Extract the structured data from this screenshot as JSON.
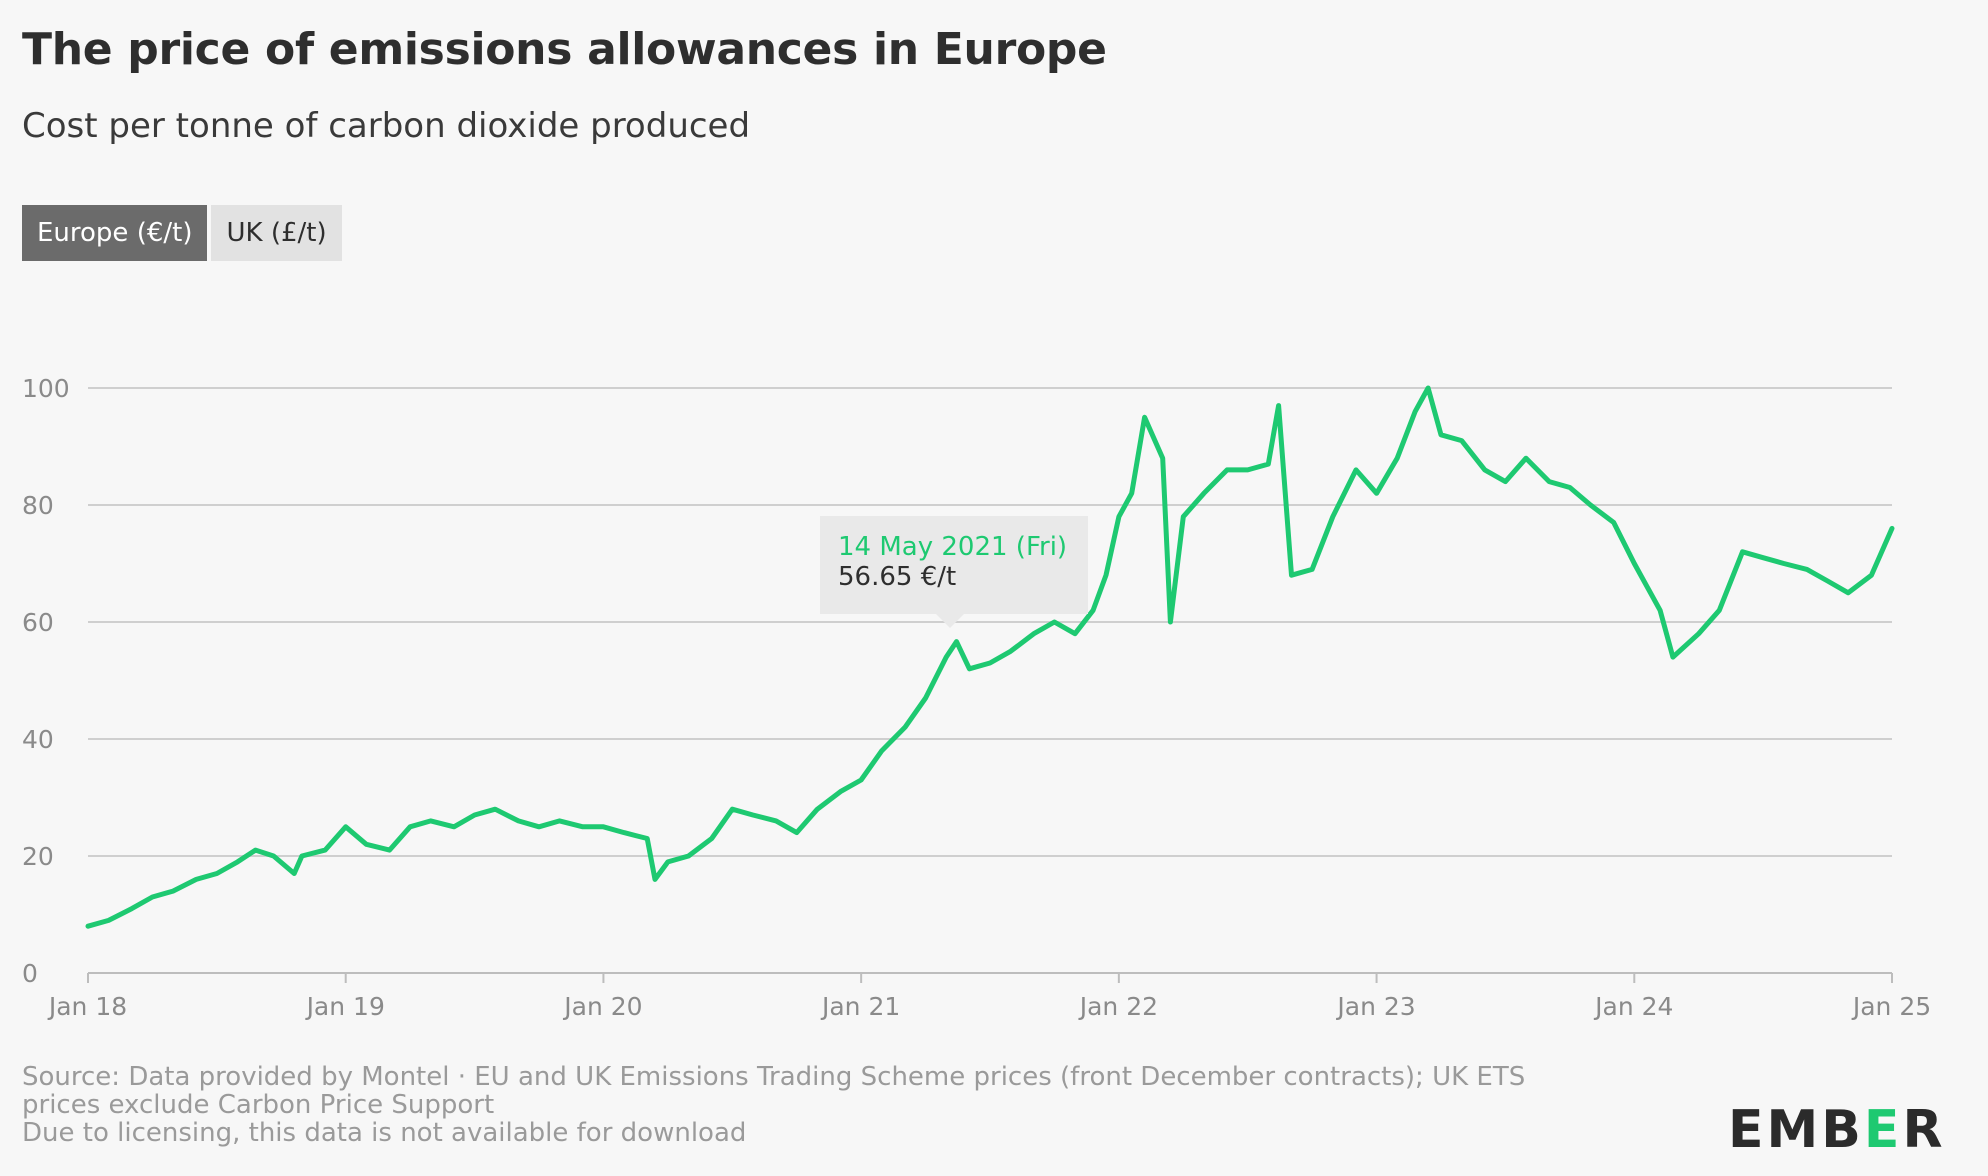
{
  "header": {
    "title": "The price of emissions allowances in Europe",
    "subtitle": "Cost per tonne of carbon dioxide produced"
  },
  "toggles": [
    {
      "label": "Europe (€/t)",
      "active": true
    },
    {
      "label": "UK (£/t)",
      "active": false
    }
  ],
  "tooltip": {
    "date": "14 May 2021 (Fri)",
    "value": "56.65 €/t",
    "x": 2021.37,
    "y": 56.65
  },
  "colors": {
    "line": "#1ec971",
    "grid": "#cfcfcf",
    "axis": "#bdbdbd"
  },
  "footer": {
    "source_line1": "Source: Data provided by Montel · EU and UK Emissions Trading Scheme prices (front December contracts); UK ETS",
    "source_line2": "prices exclude Carbon Price Support",
    "source_line3": "Due to licensing, this data is not available for download",
    "logo_prefix": "EMB",
    "logo_accent": "E",
    "logo_suffix": "R"
  },
  "chart_data": {
    "type": "line",
    "xlim": [
      2018.0,
      2025.0
    ],
    "ylim": [
      0,
      100
    ],
    "x_ticks": [
      {
        "value": 2018,
        "label": "Jan 18"
      },
      {
        "value": 2019,
        "label": "Jan 19"
      },
      {
        "value": 2020,
        "label": "Jan 20"
      },
      {
        "value": 2021,
        "label": "Jan 21"
      },
      {
        "value": 2022,
        "label": "Jan 22"
      },
      {
        "value": 2023,
        "label": "Jan 23"
      },
      {
        "value": 2024,
        "label": "Jan 24"
      },
      {
        "value": 2025,
        "label": "Jan 25"
      }
    ],
    "y_ticks": [
      0,
      20,
      40,
      60,
      80,
      100
    ],
    "grid": true,
    "series": [
      {
        "x": [
          2018.0,
          2018.08,
          2018.17,
          2018.25,
          2018.33,
          2018.42,
          2018.5,
          2018.58,
          2018.65,
          2018.72,
          2018.8,
          2018.83,
          2018.92,
          2019.0,
          2019.08,
          2019.17,
          2019.25,
          2019.33,
          2019.42,
          2019.5,
          2019.58,
          2019.67,
          2019.75,
          2019.83,
          2019.92,
          2020.0,
          2020.08,
          2020.17,
          2020.2,
          2020.25,
          2020.33,
          2020.42,
          2020.5,
          2020.58,
          2020.67,
          2020.75,
          2020.83,
          2020.92,
          2021.0,
          2021.08,
          2021.17,
          2021.25,
          2021.33,
          2021.37,
          2021.42,
          2021.5,
          2021.58,
          2021.67,
          2021.75,
          2021.83,
          2021.9,
          2021.95,
          2022.0,
          2022.05,
          2022.1,
          2022.17,
          2022.2,
          2022.25,
          2022.33,
          2022.42,
          2022.5,
          2022.58,
          2022.62,
          2022.67,
          2022.75,
          2022.83,
          2022.92,
          2023.0,
          2023.08,
          2023.15,
          2023.2,
          2023.25,
          2023.33,
          2023.42,
          2023.5,
          2023.58,
          2023.67,
          2023.75,
          2023.83,
          2023.92,
          2024.0,
          2024.05,
          2024.1,
          2024.15,
          2024.25,
          2024.33,
          2024.42,
          2024.5,
          2024.58,
          2024.67,
          2024.75,
          2024.83,
          2024.92,
          2025.0
        ],
        "y": [
          8,
          9,
          11,
          13,
          14,
          16,
          17,
          19,
          21,
          20,
          17,
          20,
          21,
          25,
          22,
          21,
          25,
          26,
          25,
          27,
          28,
          26,
          25,
          26,
          25,
          25,
          24,
          23,
          16,
          19,
          20,
          23,
          28,
          27,
          26,
          24,
          28,
          31,
          33,
          38,
          42,
          47,
          54,
          56.65,
          52,
          53,
          55,
          58,
          60,
          58,
          62,
          68,
          78,
          82,
          95,
          88,
          60,
          78,
          82,
          86,
          86,
          87,
          97,
          68,
          69,
          78,
          86,
          82,
          88,
          96,
          100,
          92,
          91,
          86,
          84,
          88,
          84,
          83,
          80,
          77,
          70,
          66,
          62,
          54,
          58,
          62,
          72,
          71,
          70,
          69,
          67,
          65,
          68,
          76
        ]
      }
    ]
  }
}
